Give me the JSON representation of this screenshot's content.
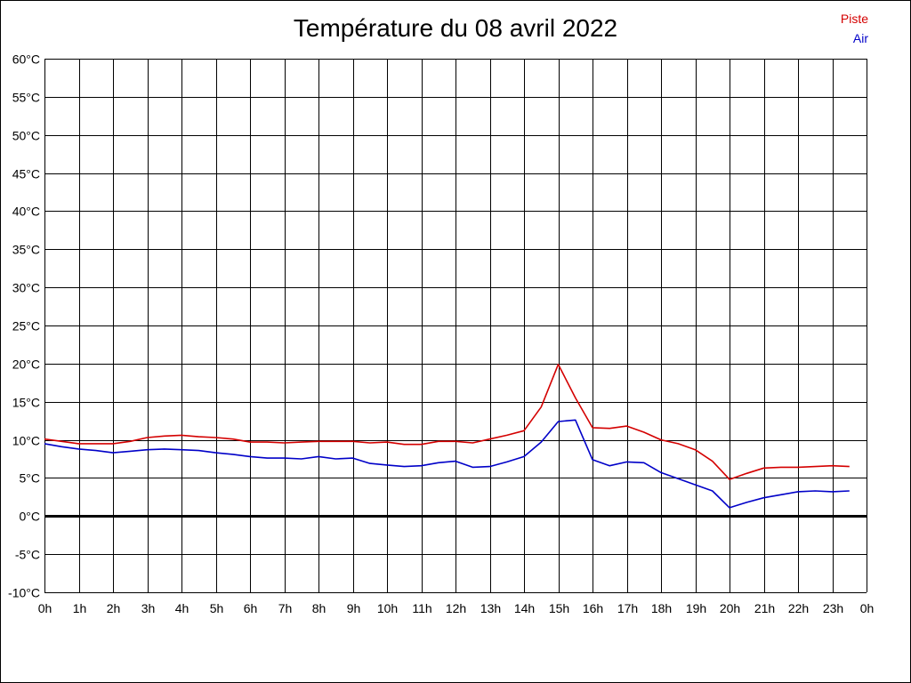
{
  "colors": {
    "piste": "#d40000",
    "air": "#0000c8",
    "grid": "#000000",
    "zero_line": "#000000",
    "background": "#ffffff"
  },
  "chart_data": {
    "type": "line",
    "title": "Température du 08 avril 2022",
    "xlabel": "",
    "ylabel": "",
    "ylim": [
      -10,
      60
    ],
    "xlim": [
      0,
      24
    ],
    "grid": true,
    "legend_position": "top-right",
    "y_ticks": [
      {
        "value": 60,
        "label": "60°C"
      },
      {
        "value": 55,
        "label": "55°C"
      },
      {
        "value": 50,
        "label": "50°C"
      },
      {
        "value": 45,
        "label": "45°C"
      },
      {
        "value": 40,
        "label": "40°C"
      },
      {
        "value": 35,
        "label": "35°C"
      },
      {
        "value": 30,
        "label": "30°C"
      },
      {
        "value": 25,
        "label": "25°C"
      },
      {
        "value": 20,
        "label": "20°C"
      },
      {
        "value": 15,
        "label": "15°C"
      },
      {
        "value": 10,
        "label": "10°C"
      },
      {
        "value": 5,
        "label": "5°C"
      },
      {
        "value": 0,
        "label": "0°C"
      },
      {
        "value": -5,
        "label": "-5°C"
      },
      {
        "value": -10,
        "label": "-10°C"
      }
    ],
    "x_ticks": [
      {
        "value": 0,
        "label": "0h"
      },
      {
        "value": 1,
        "label": "1h"
      },
      {
        "value": 2,
        "label": "2h"
      },
      {
        "value": 3,
        "label": "3h"
      },
      {
        "value": 4,
        "label": "4h"
      },
      {
        "value": 5,
        "label": "5h"
      },
      {
        "value": 6,
        "label": "6h"
      },
      {
        "value": 7,
        "label": "7h"
      },
      {
        "value": 8,
        "label": "8h"
      },
      {
        "value": 9,
        "label": "9h"
      },
      {
        "value": 10,
        "label": "10h"
      },
      {
        "value": 11,
        "label": "11h"
      },
      {
        "value": 12,
        "label": "12h"
      },
      {
        "value": 13,
        "label": "13h"
      },
      {
        "value": 14,
        "label": "14h"
      },
      {
        "value": 15,
        "label": "15h"
      },
      {
        "value": 16,
        "label": "16h"
      },
      {
        "value": 17,
        "label": "17h"
      },
      {
        "value": 18,
        "label": "18h"
      },
      {
        "value": 19,
        "label": "19h"
      },
      {
        "value": 20,
        "label": "20h"
      },
      {
        "value": 21,
        "label": "21h"
      },
      {
        "value": 22,
        "label": "22h"
      },
      {
        "value": 23,
        "label": "23h"
      },
      {
        "value": 24,
        "label": "0h"
      }
    ],
    "x": [
      0,
      0.5,
      1,
      1.5,
      2,
      2.5,
      3,
      3.5,
      4,
      4.5,
      5,
      5.5,
      6,
      6.5,
      7,
      7.5,
      8,
      8.5,
      9,
      9.5,
      10,
      10.5,
      11,
      11.5,
      12,
      12.5,
      13,
      13.5,
      14,
      14.5,
      15,
      15.5,
      16,
      16.5,
      17,
      17.5,
      18,
      18.5,
      19,
      19.5,
      20,
      20.5,
      21,
      21.5,
      22,
      22.5,
      23,
      23.5
    ],
    "series": [
      {
        "name": "Piste",
        "color": "#d40000",
        "values": [
          10.1,
          9.8,
          9.5,
          9.5,
          9.5,
          9.8,
          10.3,
          10.5,
          10.6,
          10.4,
          10.3,
          10.1,
          9.7,
          9.7,
          9.6,
          9.7,
          9.8,
          9.8,
          9.8,
          9.6,
          9.7,
          9.4,
          9.4,
          9.8,
          9.8,
          9.6,
          10.1,
          10.6,
          11.2,
          14.3,
          19.9,
          15.5,
          11.6,
          11.5,
          11.8,
          11.0,
          10.0,
          9.5,
          8.7,
          7.2,
          4.8,
          5.6,
          6.3,
          6.4,
          6.4,
          6.5,
          6.6,
          6.5
        ]
      },
      {
        "name": "Air",
        "color": "#0000c8",
        "values": [
          9.5,
          9.1,
          8.8,
          8.6,
          8.3,
          8.5,
          8.7,
          8.8,
          8.7,
          8.6,
          8.3,
          8.1,
          7.8,
          7.6,
          7.6,
          7.5,
          7.8,
          7.5,
          7.6,
          6.9,
          6.7,
          6.5,
          6.6,
          7.0,
          7.2,
          6.4,
          6.5,
          7.1,
          7.8,
          9.7,
          12.4,
          12.6,
          7.4,
          6.6,
          7.1,
          7.0,
          5.7,
          4.9,
          4.1,
          3.3,
          1.1,
          1.8,
          2.4,
          2.8,
          3.2,
          3.3,
          3.2,
          3.3
        ]
      }
    ]
  }
}
